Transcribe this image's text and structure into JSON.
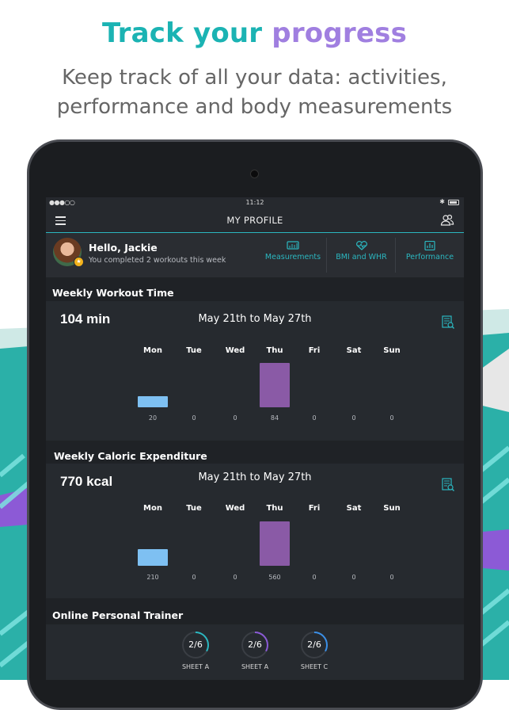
{
  "headline": {
    "part1": "Track your",
    "part2": "progress"
  },
  "subline": {
    "line1": "Keep track of all your data: activities,",
    "line2": "performance and body measurements"
  },
  "statusbar": {
    "signal": "●●●○○",
    "time": "11:12",
    "bluetooth": "✱"
  },
  "navbar": {
    "title": "MY PROFILE",
    "menu_icon": "hamburger-icon",
    "right_icon": "users-icon"
  },
  "profile": {
    "greeting": "Hello, Jackie",
    "subtitle": "You completed 2 workouts this week",
    "tabs": [
      {
        "label": "Measurements",
        "icon": "measurements-icon"
      },
      {
        "label": "BMI and WHR",
        "icon": "heart-icon"
      },
      {
        "label": "Performance",
        "icon": "chart-icon"
      }
    ]
  },
  "workout": {
    "section_title": "Weekly Workout Time",
    "total": "104 min",
    "range": "May 21th to May 27th",
    "days": [
      "Mon",
      "Tue",
      "Wed",
      "Thu",
      "Fri",
      "Sat",
      "Sun"
    ],
    "values": [
      "20",
      "0",
      "0",
      "84",
      "0",
      "0",
      "0"
    ]
  },
  "calories": {
    "section_title": "Weekly Caloric Expenditure",
    "total": "770 kcal",
    "range": "May 21th to May 27th",
    "days": [
      "Mon",
      "Tue",
      "Wed",
      "Thu",
      "Fri",
      "Sat",
      "Sun"
    ],
    "values": [
      "210",
      "0",
      "0",
      "560",
      "0",
      "0",
      "0"
    ]
  },
  "trainer": {
    "section_title": "Online Personal Trainer",
    "sheets": [
      {
        "value": "2/6",
        "label": "SHEET A",
        "progress": 0.33
      },
      {
        "value": "2/6",
        "label": "SHEET A",
        "progress": 0.33
      },
      {
        "value": "2/6",
        "label": "SHEET C",
        "progress": 0.33
      }
    ]
  },
  "colors": {
    "accent": "#2bb7c0",
    "purple": "#a07fe0",
    "bar_blue": "#7ec0f2",
    "bar_purple": "#8a5aa6"
  }
}
